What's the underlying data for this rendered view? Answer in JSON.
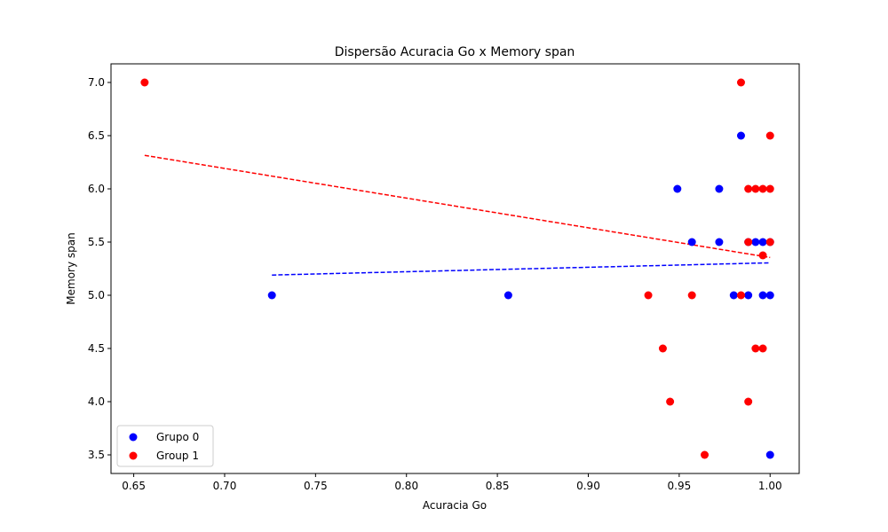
{
  "chart_data": {
    "type": "scatter",
    "title": "Dispersão Acuracia Go x Memory span",
    "xlabel": "Acuracia Go",
    "ylabel": "Memory span",
    "xlim": [
      0.6375,
      1.016
    ],
    "ylim": [
      3.325,
      7.175
    ],
    "xticks": [
      0.65,
      0.7,
      0.75,
      0.8,
      0.85,
      0.9,
      0.95,
      1.0
    ],
    "xtick_labels": [
      "0.65",
      "0.70",
      "0.75",
      "0.80",
      "0.85",
      "0.90",
      "0.95",
      "1.00"
    ],
    "yticks": [
      3.5,
      4.0,
      4.5,
      5.0,
      5.5,
      6.0,
      6.5,
      7.0
    ],
    "ytick_labels": [
      "3.5",
      "4.0",
      "4.5",
      "5.0",
      "5.5",
      "6.0",
      "6.5",
      "7.0"
    ],
    "grid": false,
    "legend_position": "bottom-left",
    "series": [
      {
        "name": "Grupo 0",
        "color": "#0000ff",
        "points": [
          {
            "x": 0.726,
            "y": 5.0
          },
          {
            "x": 0.856,
            "y": 5.0
          },
          {
            "x": 0.949,
            "y": 6.0
          },
          {
            "x": 0.957,
            "y": 5.5
          },
          {
            "x": 0.972,
            "y": 6.0
          },
          {
            "x": 0.972,
            "y": 5.5
          },
          {
            "x": 0.98,
            "y": 5.0
          },
          {
            "x": 0.984,
            "y": 6.5
          },
          {
            "x": 0.988,
            "y": 5.0
          },
          {
            "x": 0.988,
            "y": 5.5
          },
          {
            "x": 0.992,
            "y": 5.5
          },
          {
            "x": 0.996,
            "y": 5.5
          },
          {
            "x": 0.996,
            "y": 5.0
          },
          {
            "x": 1.0,
            "y": 5.0
          },
          {
            "x": 1.0,
            "y": 5.5
          },
          {
            "x": 1.0,
            "y": 3.5
          }
        ],
        "trendline": {
          "x": [
            0.726,
            1.0
          ],
          "y": [
            5.19,
            5.305
          ]
        }
      },
      {
        "name": "Group 1",
        "color": "#ff0000",
        "points": [
          {
            "x": 0.656,
            "y": 7.0
          },
          {
            "x": 0.933,
            "y": 5.0
          },
          {
            "x": 0.941,
            "y": 4.5
          },
          {
            "x": 0.945,
            "y": 4.0
          },
          {
            "x": 0.957,
            "y": 5.0
          },
          {
            "x": 0.964,
            "y": 3.5
          },
          {
            "x": 0.984,
            "y": 7.0
          },
          {
            "x": 0.984,
            "y": 5.0
          },
          {
            "x": 0.988,
            "y": 6.0
          },
          {
            "x": 0.988,
            "y": 5.5
          },
          {
            "x": 0.988,
            "y": 4.0
          },
          {
            "x": 0.992,
            "y": 6.0
          },
          {
            "x": 0.992,
            "y": 4.5
          },
          {
            "x": 0.996,
            "y": 6.0
          },
          {
            "x": 0.996,
            "y": 5.375
          },
          {
            "x": 0.996,
            "y": 4.5
          },
          {
            "x": 1.0,
            "y": 6.5
          },
          {
            "x": 1.0,
            "y": 6.0
          },
          {
            "x": 1.0,
            "y": 5.5
          }
        ],
        "trendline": {
          "x": [
            0.656,
            1.0
          ],
          "y": [
            6.315,
            5.355
          ]
        }
      }
    ]
  }
}
